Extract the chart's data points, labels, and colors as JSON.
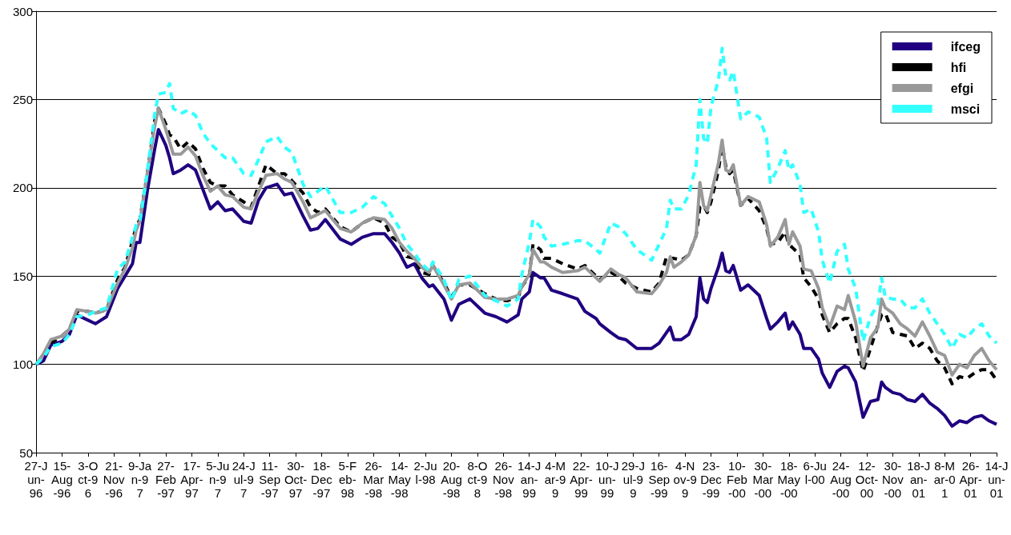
{
  "chart_data": {
    "type": "line",
    "marker": "none",
    "grid": "y",
    "legend": "top right",
    "x": [
      "1996-06-27",
      "1996-07-11",
      "1996-07-25",
      "1996-08-15",
      "1996-08-29",
      "1996-09-12",
      "1996-10-03",
      "1996-10-17",
      "1996-11-07",
      "1996-11-28",
      "1996-12-12",
      "1996-12-26",
      "1997-01-02",
      "1997-01-09",
      "1997-01-23",
      "1997-02-06",
      "1997-02-13",
      "1997-02-27",
      "1997-03-06",
      "1997-03-13",
      "1997-03-27",
      "1997-04-10",
      "1997-04-24",
      "1997-05-08",
      "1997-05-22",
      "1997-06-05",
      "1997-06-19",
      "1997-07-03",
      "1997-07-24",
      "1997-08-07",
      "1997-08-21",
      "1997-09-04",
      "1997-09-25",
      "1997-10-09",
      "1997-10-23",
      "1997-11-13",
      "1997-11-27",
      "1997-12-11",
      "1997-12-25",
      "1998-01-22",
      "1998-02-12",
      "1998-03-05",
      "1998-03-26",
      "1998-04-16",
      "1998-04-30",
      "1998-05-14",
      "1998-05-28",
      "1998-06-11",
      "1998-06-25",
      "1998-07-09",
      "1998-07-16",
      "1998-08-06",
      "1998-08-20",
      "1998-09-03",
      "1998-09-24",
      "1998-10-22",
      "1998-11-12",
      "1998-12-03",
      "1998-12-24",
      "1998-12-31",
      "1999-01-14",
      "1999-01-21",
      "1999-02-04",
      "1999-02-11",
      "1999-02-25",
      "1999-03-18",
      "1999-04-15",
      "1999-04-29",
      "1999-05-20",
      "1999-05-27",
      "1999-06-17",
      "1999-07-01",
      "1999-07-15",
      "1999-08-05",
      "1999-09-02",
      "1999-09-16",
      "1999-09-30",
      "1999-10-07",
      "1999-10-14",
      "1999-10-28",
      "1999-11-11",
      "1999-11-25",
      "1999-12-02",
      "1999-12-09",
      "1999-12-16",
      "1999-12-23",
      "2000-01-06",
      "2000-01-13",
      "2000-01-20",
      "2000-01-27",
      "2000-02-03",
      "2000-02-17",
      "2000-03-02",
      "2000-03-23",
      "2000-04-06",
      "2000-04-13",
      "2000-04-27",
      "2000-05-11",
      "2000-05-18",
      "2000-05-25",
      "2000-06-08",
      "2000-06-15",
      "2000-06-29",
      "2000-07-13",
      "2000-07-20",
      "2000-08-03",
      "2000-08-17",
      "2000-08-31",
      "2000-09-07",
      "2000-09-21",
      "2000-10-05",
      "2000-10-19",
      "2000-11-02",
      "2000-11-09",
      "2000-11-16",
      "2000-11-30",
      "2000-12-14",
      "2000-12-28",
      "2001-01-11",
      "2001-01-25",
      "2001-02-08",
      "2001-02-22",
      "2001-03-08",
      "2001-03-22",
      "2001-04-05",
      "2001-04-19",
      "2001-05-03",
      "2001-05-17",
      "2001-05-31",
      "2001-06-14"
    ],
    "xlim": [
      "1996-06-27",
      "2001-06-14"
    ],
    "xticks": [
      {
        "value": "1996-06-27",
        "label": "27-Jun-96"
      },
      {
        "value": "1996-08-15",
        "label": "15-Aug-96"
      },
      {
        "value": "1996-10-03",
        "label": "3-Oct-96"
      },
      {
        "value": "1996-11-21",
        "label": "21-Nov-96"
      },
      {
        "value": "1997-01-09",
        "label": "9-Jan-97"
      },
      {
        "value": "1997-02-27",
        "label": "27-Feb-97"
      },
      {
        "value": "1997-04-17",
        "label": "17-Apr-97"
      },
      {
        "value": "1997-06-05",
        "label": "5-Jun-97"
      },
      {
        "value": "1997-07-24",
        "label": "24-Jul-97"
      },
      {
        "value": "1997-09-11",
        "label": "11-Sep-97"
      },
      {
        "value": "1997-10-30",
        "label": "30-Oct-97"
      },
      {
        "value": "1997-12-18",
        "label": "18-Dec-97"
      },
      {
        "value": "1998-02-05",
        "label": "5-Feb-98"
      },
      {
        "value": "1998-03-26",
        "label": "26-Mar-98"
      },
      {
        "value": "1998-05-14",
        "label": "14-May-98"
      },
      {
        "value": "1998-07-02",
        "label": "2-Jul-98"
      },
      {
        "value": "1998-08-20",
        "label": "20-Aug-98"
      },
      {
        "value": "1998-10-08",
        "label": "8-Oct-98"
      },
      {
        "value": "1998-11-26",
        "label": "26-Nov-98"
      },
      {
        "value": "1999-01-14",
        "label": "14-Jan-99"
      },
      {
        "value": "1999-03-04",
        "label": "4-Mar-99"
      },
      {
        "value": "1999-04-22",
        "label": "22-Apr-99"
      },
      {
        "value": "1999-06-10",
        "label": "10-Jun-99"
      },
      {
        "value": "1999-07-29",
        "label": "29-Jul-99"
      },
      {
        "value": "1999-09-16",
        "label": "16-Sep-99"
      },
      {
        "value": "1999-11-04",
        "label": "4-Nov-99"
      },
      {
        "value": "1999-12-23",
        "label": "23-Dec-99"
      },
      {
        "value": "2000-02-10",
        "label": "10-Feb-00"
      },
      {
        "value": "2000-03-30",
        "label": "30-Mar-00"
      },
      {
        "value": "2000-05-18",
        "label": "18-May-00"
      },
      {
        "value": "2000-07-06",
        "label": "6-Jul-00"
      },
      {
        "value": "2000-08-24",
        "label": "24-Aug-00"
      },
      {
        "value": "2000-10-12",
        "label": "12-Oct-00"
      },
      {
        "value": "2000-11-30",
        "label": "30-Nov-00"
      },
      {
        "value": "2001-01-18",
        "label": "18-Jan-01"
      },
      {
        "value": "2001-03-08",
        "label": "8-Mar-01"
      },
      {
        "value": "2001-04-26",
        "label": "26-Apr-01"
      },
      {
        "value": "2001-06-14",
        "label": "14-Jun-01"
      }
    ],
    "ylim": [
      50,
      300
    ],
    "yticks": [
      50,
      100,
      150,
      200,
      250,
      300
    ],
    "series": [
      {
        "name": "ifceg",
        "color": "#200080",
        "line_style": "solid",
        "values": [
          100,
          102,
          111,
          113,
          117,
          128,
          125,
          123,
          127,
          143,
          150,
          157,
          169,
          169,
          198,
          222,
          233,
          224,
          217,
          208,
          210,
          213,
          210,
          199,
          188,
          192,
          187,
          188,
          181,
          180,
          193,
          200,
          202,
          196,
          197,
          184,
          176,
          177,
          182,
          171,
          168,
          172,
          174,
          174,
          169,
          163,
          155,
          157,
          149,
          144,
          145,
          137,
          125,
          134,
          137,
          129,
          127,
          124,
          128,
          137,
          141,
          152,
          149,
          149,
          142,
          140,
          137,
          130,
          126,
          123,
          118,
          115,
          114,
          109,
          109,
          112,
          118,
          121,
          114,
          114,
          117,
          127,
          149,
          137,
          135,
          143,
          155,
          163,
          153,
          152,
          156,
          142,
          145,
          139,
          126,
          120,
          124,
          129,
          120,
          124,
          117,
          109,
          109,
          103,
          95,
          87,
          96,
          99,
          98,
          90,
          70,
          79,
          80,
          90,
          87,
          84,
          83,
          80,
          79,
          83,
          78,
          75,
          71,
          65,
          68,
          67,
          70,
          71,
          68,
          66
        ]
      },
      {
        "name": "hfi",
        "color": "#000000",
        "line_style": "dashed",
        "values": [
          100,
          104,
          112,
          116,
          120,
          130,
          130,
          129,
          131,
          148,
          155,
          170,
          178,
          182,
          208,
          238,
          245,
          236,
          230,
          229,
          222,
          226,
          222,
          211,
          203,
          201,
          201,
          196,
          192,
          189,
          201,
          213,
          208,
          208,
          204,
          197,
          189,
          186,
          188,
          178,
          175,
          180,
          183,
          180,
          172,
          169,
          161,
          160,
          152,
          151,
          156,
          146,
          138,
          145,
          145,
          140,
          137,
          136,
          138,
          144,
          150,
          168,
          165,
          160,
          160,
          157,
          154,
          156,
          150,
          148,
          152,
          150,
          146,
          143,
          141,
          146,
          161,
          160,
          160,
          159,
          162,
          173,
          189,
          190,
          186,
          192,
          210,
          224,
          212,
          208,
          210,
          190,
          194,
          187,
          177,
          168,
          169,
          175,
          168,
          166,
          162,
          149,
          144,
          137,
          128,
          118,
          123,
          126,
          126,
          115,
          96,
          109,
          122,
          128,
          129,
          118,
          117,
          116,
          109,
          112,
          109,
          102,
          98,
          89,
          93,
          92,
          95,
          97,
          97,
          91
        ]
      },
      {
        "name": "efgi",
        "color": "#999999",
        "line_style": "solid",
        "values": [
          100,
          106,
          114,
          116,
          120,
          131,
          130,
          129,
          131,
          146,
          154,
          166,
          176,
          181,
          208,
          235,
          245,
          233,
          226,
          219,
          219,
          223,
          218,
          207,
          198,
          201,
          196,
          195,
          189,
          188,
          198,
          207,
          208,
          205,
          203,
          192,
          183,
          185,
          187,
          177,
          175,
          180,
          183,
          182,
          177,
          169,
          164,
          160,
          155,
          152,
          156,
          145,
          137,
          145,
          146,
          138,
          137,
          137,
          139,
          144,
          151,
          165,
          158,
          158,
          155,
          152,
          153,
          155,
          149,
          147,
          154,
          151,
          149,
          141,
          140,
          145,
          152,
          161,
          155,
          158,
          162,
          173,
          203,
          190,
          187,
          196,
          214,
          227,
          210,
          209,
          213,
          190,
          195,
          192,
          179,
          167,
          172,
          182,
          168,
          175,
          167,
          154,
          153,
          143,
          132,
          121,
          133,
          131,
          139,
          124,
          99,
          115,
          121,
          137,
          132,
          129,
          123,
          120,
          116,
          124,
          116,
          107,
          105,
          94,
          100,
          98,
          105,
          109,
          102,
          97
        ]
      },
      {
        "name": "msci",
        "color": "#33ffff",
        "line_style": "dashed",
        "values": [
          100,
          104,
          110,
          112,
          117,
          127,
          128,
          130,
          132,
          154,
          158,
          172,
          179,
          181,
          209,
          242,
          253,
          254,
          259,
          245,
          242,
          244,
          241,
          231,
          225,
          221,
          217,
          217,
          208,
          207,
          216,
          226,
          229,
          223,
          220,
          202,
          195,
          198,
          201,
          186,
          186,
          189,
          195,
          191,
          184,
          177,
          168,
          163,
          157,
          153,
          158,
          148,
          136,
          148,
          150,
          139,
          136,
          133,
          137,
          151,
          169,
          182,
          178,
          172,
          167,
          168,
          170,
          170,
          165,
          163,
          180,
          178,
          174,
          165,
          159,
          168,
          177,
          193,
          188,
          188,
          196,
          213,
          250,
          228,
          225,
          246,
          261,
          279,
          263,
          261,
          266,
          239,
          243,
          240,
          228,
          203,
          211,
          221,
          210,
          213,
          202,
          186,
          188,
          175,
          159,
          146,
          164,
          168,
          154,
          143,
          113,
          127,
          134,
          149,
          138,
          137,
          137,
          132,
          132,
          137,
          129,
          123,
          117,
          109,
          117,
          115,
          120,
          123,
          116,
          112
        ]
      }
    ]
  }
}
